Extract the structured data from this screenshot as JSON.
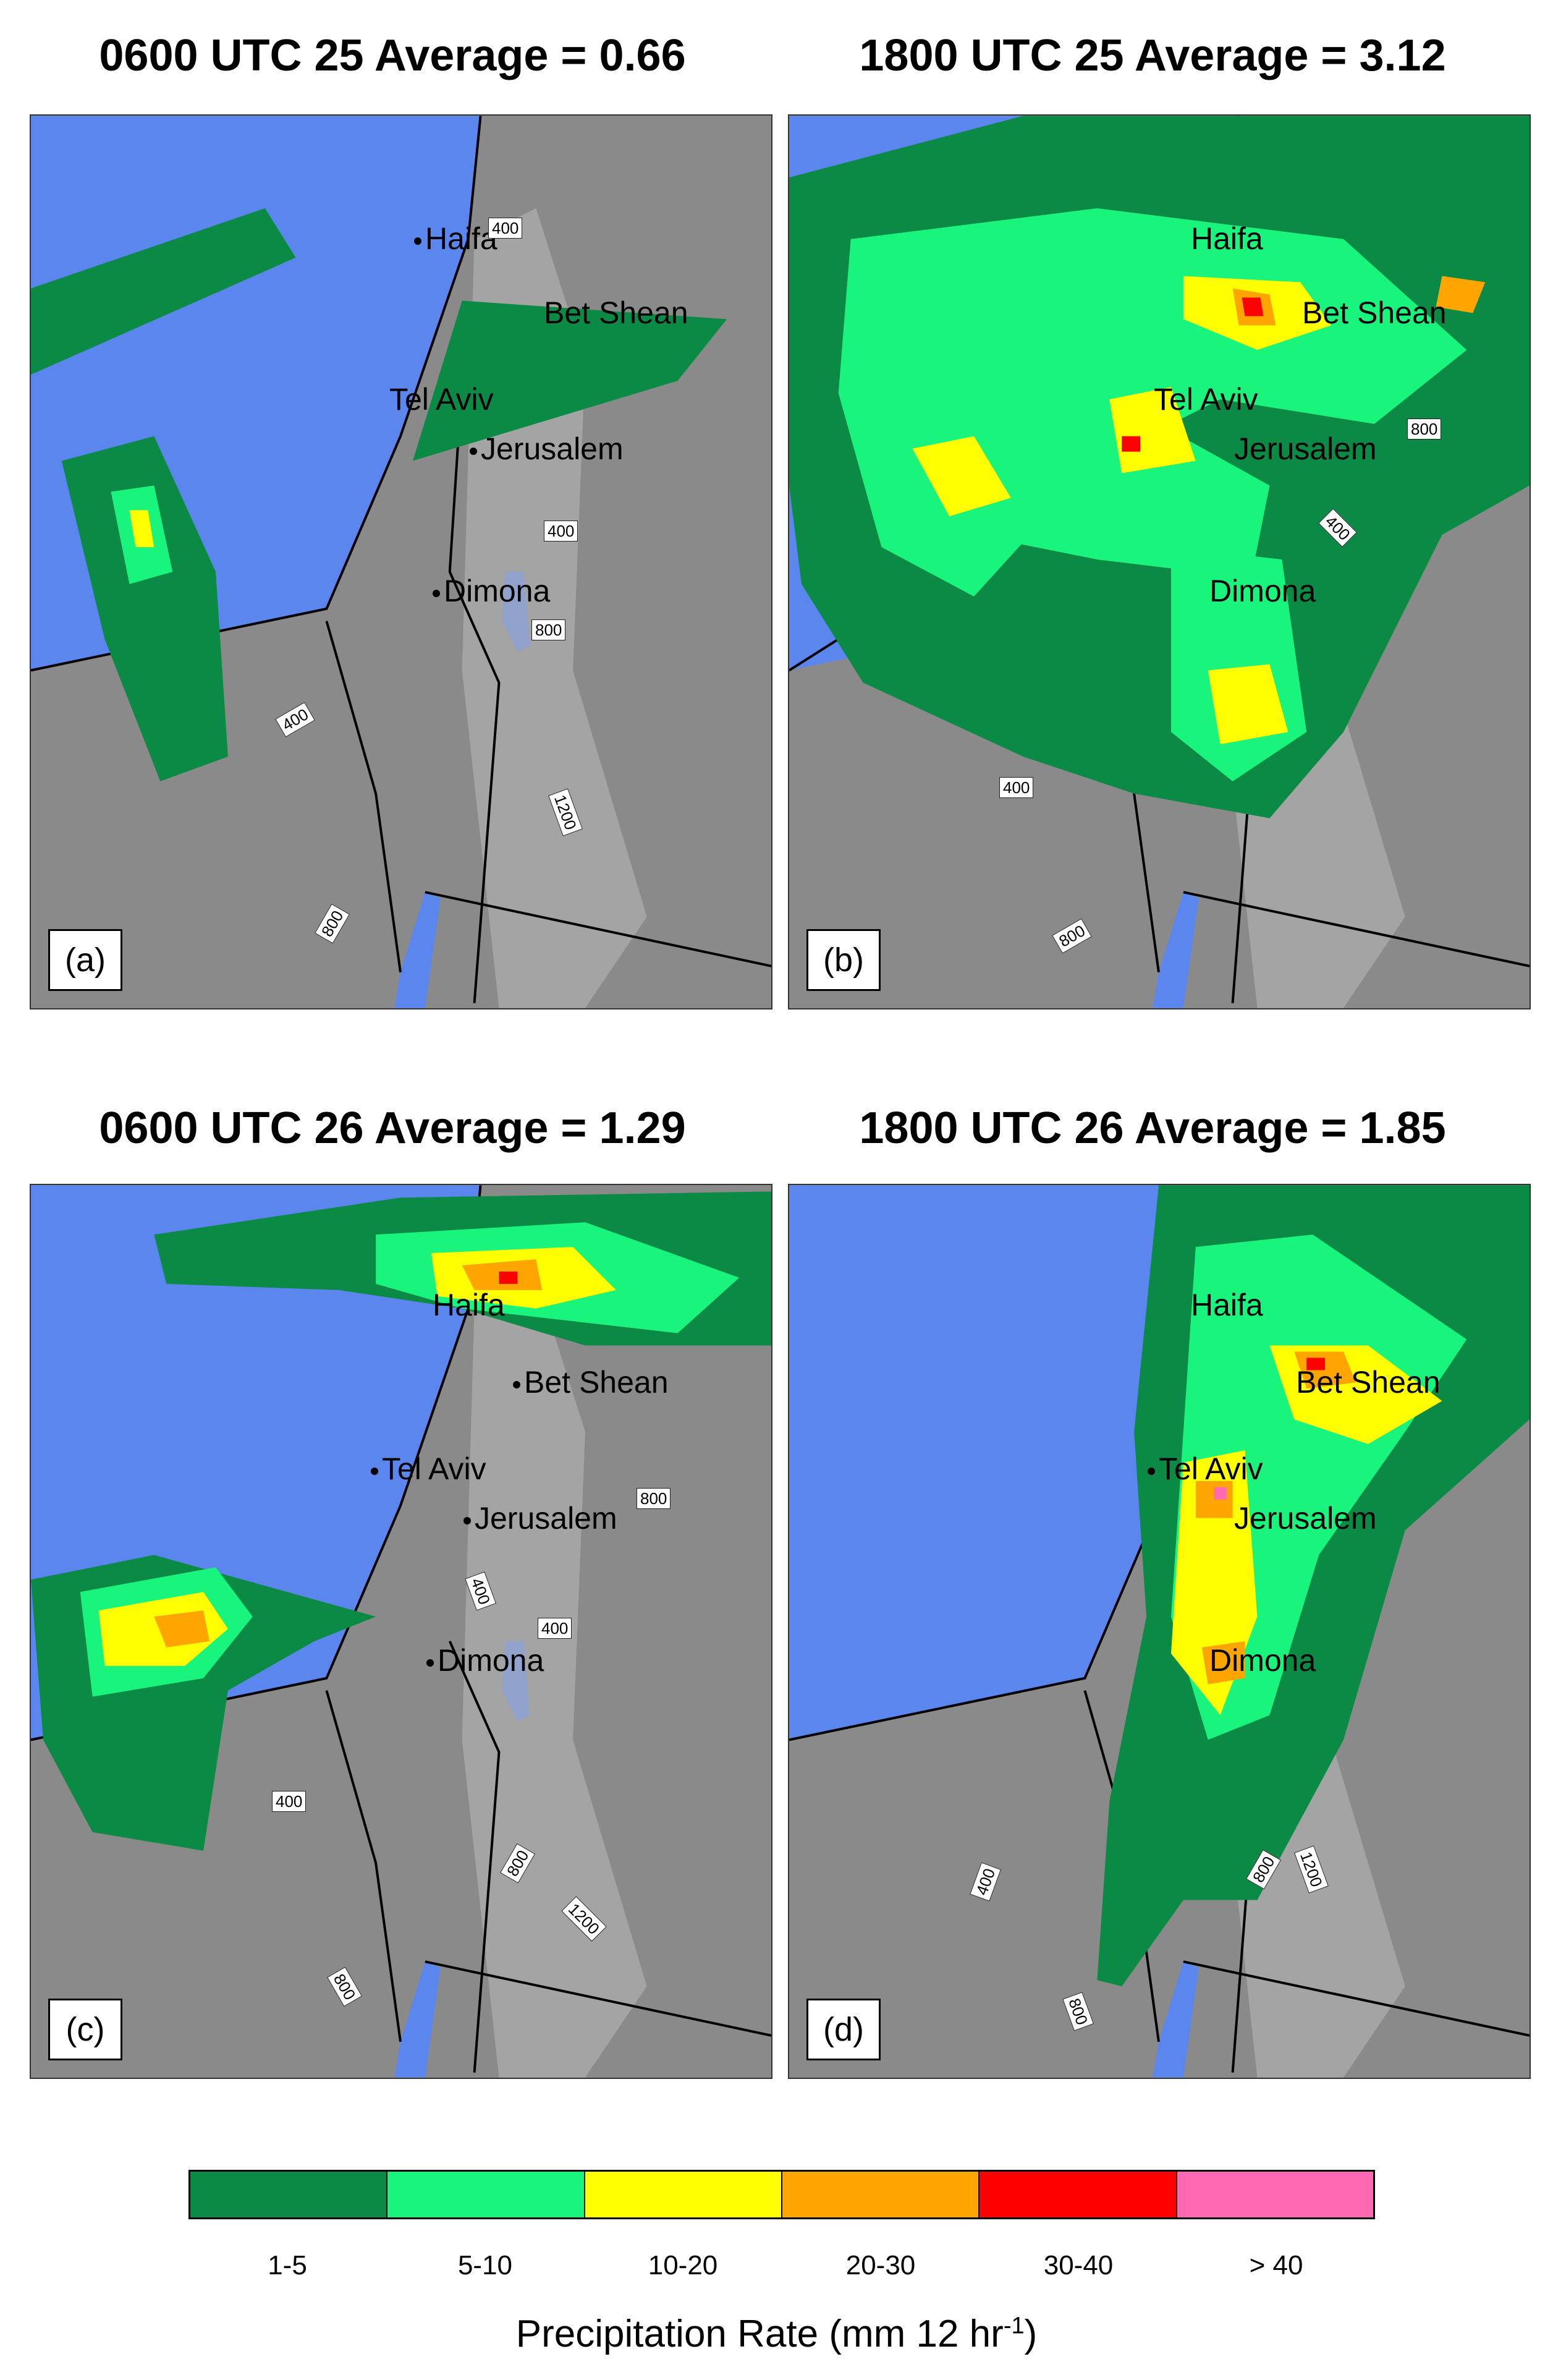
{
  "panels": [
    {
      "title": "0600 UTC 25 Average = 0.66",
      "letter": "(a)"
    },
    {
      "title": "1800 UTC 25 Average = 3.12",
      "letter": "(b)"
    },
    {
      "title": "0600 UTC 26 Average = 1.29",
      "letter": "(c)"
    },
    {
      "title": "1800 UTC 26 Average = 1.85",
      "letter": "(d)"
    }
  ],
  "cities": {
    "haifa": "Haifa",
    "bet_shean": "Bet Shean",
    "tel_aviv": "Tel Aviv",
    "jerusalem": "Jerusalem",
    "dimona": "Dimona"
  },
  "contours": {
    "c400": "400",
    "c800": "800",
    "c1200": "1200"
  },
  "legend": {
    "bins": [
      {
        "label": "1-5",
        "color": "#0b8a45"
      },
      {
        "label": "5-10",
        "color": "#19f57c"
      },
      {
        "label": "10-20",
        "color": "#ffff00"
      },
      {
        "label": "20-30",
        "color": "#ffa500"
      },
      {
        "label": "30-40",
        "color": "#ff0000"
      },
      {
        "label": "> 40",
        "color": "#ff69b4"
      }
    ],
    "title_main": "Precipitation Rate (mm 12 hr",
    "title_exp": "-1",
    "title_end": ")"
  },
  "colors": {
    "sea": "#5b86ee",
    "land": "#8a8a8a",
    "mountain": "#bdbdbd"
  }
}
